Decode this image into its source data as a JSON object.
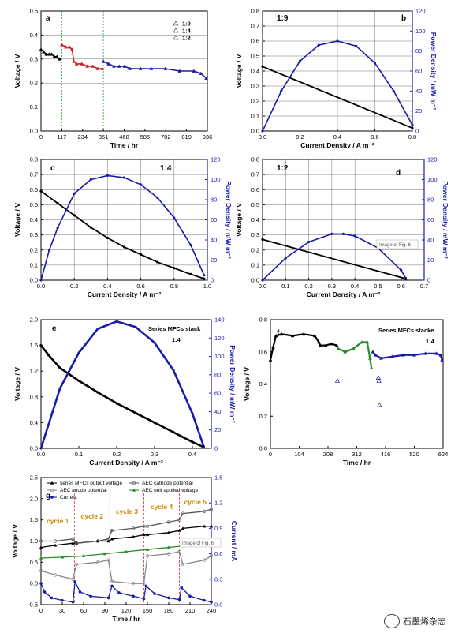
{
  "chart_data": [
    {
      "id": "a",
      "type": "line",
      "panel_label": "a",
      "xlabel": "Time / hr",
      "ylabel": "Voltage / V",
      "xlim": [
        0,
        936
      ],
      "ylim": [
        0,
        0.5
      ],
      "xticks": [
        0,
        117,
        234,
        351,
        468,
        585,
        702,
        819,
        936
      ],
      "yticks": [
        0,
        0.1,
        0.2,
        0.3,
        0.4,
        0.5
      ],
      "legend": [
        "1:9",
        "1:4",
        "1:2"
      ],
      "legend_position": "top-right",
      "vlines": [
        117,
        351
      ],
      "series": [
        {
          "name": "1:9",
          "color": "#000000",
          "x": [
            0,
            15,
            30,
            45,
            60,
            75,
            90,
            105
          ],
          "y": [
            0.34,
            0.33,
            0.32,
            0.32,
            0.32,
            0.31,
            0.31,
            0.3
          ]
        },
        {
          "name": "1:4",
          "color": "#cc2222",
          "x": [
            117,
            140,
            160,
            175,
            185,
            200,
            230,
            260,
            290,
            320,
            345
          ],
          "y": [
            0.36,
            0.35,
            0.35,
            0.34,
            0.29,
            0.28,
            0.28,
            0.27,
            0.27,
            0.26,
            0.26
          ]
        },
        {
          "name": "1:2",
          "color": "#1a1aa8",
          "x": [
            351,
            380,
            410,
            440,
            470,
            500,
            560,
            620,
            700,
            780,
            860,
            900,
            930
          ],
          "y": [
            0.29,
            0.28,
            0.27,
            0.27,
            0.27,
            0.26,
            0.26,
            0.26,
            0.26,
            0.25,
            0.25,
            0.24,
            0.22
          ]
        }
      ]
    },
    {
      "id": "b",
      "type": "line",
      "panel_label": "b",
      "annotation": "1:9",
      "xlabel": "Current Density / A m⁻²",
      "ylabel": "Voltage / V",
      "y2label": "Power Density / mW m⁻²",
      "xlim": [
        0,
        0.8
      ],
      "ylim": [
        0,
        0.8
      ],
      "y2lim": [
        0,
        120
      ],
      "xticks": [
        0.0,
        0.2,
        0.4,
        0.6,
        0.8
      ],
      "yticks": [
        0.0,
        0.1,
        0.2,
        0.3,
        0.4,
        0.5,
        0.6,
        0.7,
        0.8
      ],
      "y2ticks": [
        0,
        20,
        40,
        60,
        80,
        100,
        120
      ],
      "voltage": {
        "x": [
          0.0,
          0.8
        ],
        "y": [
          0.43,
          0.02
        ]
      },
      "power": {
        "x": [
          0.0,
          0.1,
          0.2,
          0.3,
          0.4,
          0.5,
          0.6,
          0.7,
          0.8
        ],
        "y": [
          0,
          40,
          70,
          86,
          90,
          85,
          68,
          40,
          6
        ]
      }
    },
    {
      "id": "c",
      "type": "line",
      "panel_label": "c",
      "annotation": "1:4",
      "xlabel": "Current Density / A m⁻²",
      "ylabel": "Voltage / V",
      "y2label": "Power Density / mW m⁻²",
      "xlim": [
        0,
        1.0
      ],
      "ylim": [
        0,
        0.8
      ],
      "y2lim": [
        0,
        120
      ],
      "xticks": [
        0.0,
        0.2,
        0.4,
        0.6,
        0.8,
        1.0
      ],
      "yticks": [
        0.0,
        0.1,
        0.2,
        0.3,
        0.4,
        0.5,
        0.6,
        0.7,
        0.8
      ],
      "y2ticks": [
        0,
        20,
        40,
        60,
        80,
        100,
        120
      ],
      "voltage": {
        "x": [
          0.0,
          0.1,
          0.2,
          0.3,
          0.4,
          0.5,
          0.6,
          0.7,
          0.8,
          0.9,
          0.98
        ],
        "y": [
          0.59,
          0.51,
          0.43,
          0.35,
          0.28,
          0.22,
          0.17,
          0.12,
          0.08,
          0.04,
          0.01
        ]
      },
      "power": {
        "x": [
          0.0,
          0.05,
          0.1,
          0.2,
          0.3,
          0.4,
          0.5,
          0.6,
          0.7,
          0.8,
          0.9,
          0.98
        ],
        "y": [
          0,
          30,
          52,
          86,
          100,
          104,
          102,
          95,
          82,
          62,
          35,
          5
        ]
      }
    },
    {
      "id": "d",
      "type": "line",
      "panel_label": "d",
      "annotation": "1:2",
      "xlabel": "Current Density / A m⁻²",
      "ylabel": "Voltage / V",
      "y2label": "Power Density / mW m⁻²",
      "xlim": [
        0,
        0.7
      ],
      "ylim": [
        0,
        0.8
      ],
      "y2lim": [
        0,
        120
      ],
      "xticks": [
        0.0,
        0.1,
        0.2,
        0.3,
        0.4,
        0.5,
        0.6,
        0.7
      ],
      "yticks": [
        0.0,
        0.1,
        0.2,
        0.3,
        0.4,
        0.5,
        0.6,
        0.7,
        0.8
      ],
      "y2ticks": [
        0,
        20,
        40,
        60,
        80,
        100,
        120
      ],
      "voltage": {
        "x": [
          0.0,
          0.62
        ],
        "y": [
          0.27,
          0.01
        ]
      },
      "power": {
        "x": [
          0.0,
          0.1,
          0.2,
          0.3,
          0.35,
          0.4,
          0.5,
          0.6,
          0.62
        ],
        "y": [
          0,
          22,
          38,
          46,
          46,
          44,
          32,
          10,
          2
        ]
      }
    },
    {
      "id": "e",
      "type": "line",
      "panel_label": "e",
      "annotation": "Series MFCs stack",
      "annotation2": "1:4",
      "xlabel": "Current Density / A m⁻²",
      "ylabel": "Voltage / V",
      "y2label": "Power Density / mW m⁻²",
      "xlim": [
        0,
        0.45
      ],
      "ylim": [
        0,
        2.0
      ],
      "y2lim": [
        0,
        140
      ],
      "xticks": [
        0.0,
        0.1,
        0.2,
        0.3,
        0.4
      ],
      "yticks": [
        0.0,
        0.4,
        0.8,
        1.2,
        1.6,
        2.0
      ],
      "y2ticks": [
        0,
        20,
        40,
        60,
        80,
        100,
        120,
        140
      ],
      "voltage": {
        "x": [
          0.0,
          0.02,
          0.05,
          0.1,
          0.15,
          0.2,
          0.25,
          0.3,
          0.35,
          0.4,
          0.43
        ],
        "y": [
          1.6,
          1.45,
          1.25,
          1.05,
          0.87,
          0.7,
          0.55,
          0.4,
          0.25,
          0.1,
          0.02
        ]
      },
      "power": {
        "x": [
          0.0,
          0.05,
          0.1,
          0.15,
          0.2,
          0.25,
          0.3,
          0.35,
          0.4,
          0.43
        ],
        "y": [
          0,
          65,
          104,
          130,
          138,
          132,
          115,
          85,
          38,
          2
        ]
      }
    },
    {
      "id": "f",
      "type": "line",
      "panel_label": "f",
      "annotation": "Series MFCs stacke",
      "annotation2": "1:4",
      "xlabel": "Time / hr",
      "ylabel": "Voltage / V",
      "xlim": [
        0,
        624
      ],
      "ylim": [
        0,
        0.8
      ],
      "xticks": [
        0,
        104,
        208,
        312,
        416,
        520,
        624
      ],
      "yticks": [
        0.0,
        0.2,
        0.4,
        0.6,
        0.8
      ],
      "series": [
        {
          "name": "segment-1",
          "color": "#000000",
          "x": [
            0,
            10,
            20,
            40,
            80,
            120,
            160,
            175,
            180,
            200,
            220,
            240
          ],
          "y": [
            0.55,
            0.63,
            0.7,
            0.71,
            0.7,
            0.71,
            0.7,
            0.66,
            0.64,
            0.64,
            0.65,
            0.64
          ]
        },
        {
          "name": "segment-2",
          "color": "#2a8a2a",
          "x": [
            245,
            270,
            300,
            330,
            350,
            360,
            365
          ],
          "y": [
            0.62,
            0.6,
            0.62,
            0.66,
            0.66,
            0.56,
            0.5
          ]
        },
        {
          "name": "segment-3",
          "color": "#1a1aa8",
          "x": [
            370,
            380,
            400,
            440,
            480,
            520,
            560,
            600,
            615,
            620
          ],
          "y": [
            0.6,
            0.58,
            0.56,
            0.57,
            0.58,
            0.58,
            0.59,
            0.59,
            0.58,
            0.55
          ]
        }
      ],
      "outliers": [
        {
          "x": [
            242,
            390,
            392,
            394
          ],
          "y": [
            0.42,
            0.44,
            0.42,
            0.27
          ]
        }
      ]
    },
    {
      "id": "g",
      "type": "line",
      "panel_label": "g",
      "xlabel": "Time / hr",
      "ylabel": "Voltage / V",
      "y2label": "Current / mA",
      "xlim": [
        0,
        240
      ],
      "ylim": [
        -0.5,
        2.5
      ],
      "y2lim": [
        0,
        1.5
      ],
      "xticks": [
        0,
        30,
        60,
        90,
        120,
        150,
        180,
        210,
        240
      ],
      "yticks": [
        -0.5,
        0.0,
        0.5,
        1.0,
        1.5,
        2.0,
        2.5
      ],
      "y2ticks": [
        0.0,
        0.3,
        0.6,
        0.9,
        1.2,
        1.5
      ],
      "cycles": [
        "cycle 1",
        "cycle 2",
        "cycle 3",
        "cycle 4",
        "cycle 5"
      ],
      "cycle_bounds": [
        47,
        97,
        145,
        195
      ],
      "series": [
        {
          "name": "series MFCs output voltage",
          "color": "#000000",
          "axis": "left",
          "x": [
            0,
            20,
            45,
            50,
            80,
            95,
            100,
            130,
            145,
            150,
            180,
            195,
            200,
            230,
            240
          ],
          "y": [
            0.85,
            0.9,
            0.95,
            0.95,
            1.0,
            1.0,
            1.05,
            1.1,
            1.15,
            1.15,
            1.2,
            1.25,
            1.3,
            1.35,
            1.35
          ]
        },
        {
          "name": "AEC cathode potential",
          "color": "#555555",
          "axis": "left",
          "x": [
            0,
            20,
            45,
            50,
            80,
            95,
            100,
            130,
            145,
            150,
            180,
            195,
            200,
            230,
            240
          ],
          "y": [
            1.0,
            1.0,
            1.05,
            0.95,
            1.0,
            1.05,
            1.25,
            1.3,
            1.35,
            1.35,
            1.45,
            1.5,
            1.65,
            1.7,
            1.75
          ]
        },
        {
          "name": "AEC anode potential",
          "color": "#888888",
          "axis": "left",
          "x": [
            0,
            20,
            45,
            50,
            80,
            95,
            100,
            130,
            145,
            150,
            180,
            195,
            200,
            230,
            240
          ],
          "y": [
            0.3,
            0.2,
            0.1,
            0.45,
            0.5,
            0.55,
            0.05,
            0.0,
            0.0,
            0.65,
            0.7,
            0.75,
            0.45,
            0.55,
            0.65
          ]
        },
        {
          "name": "AEC unit applied voltage",
          "color": "#2a8a2a",
          "axis": "left",
          "x": [
            0,
            30,
            60,
            90,
            120,
            150,
            180,
            210,
            240
          ],
          "y": [
            0.6,
            0.62,
            0.65,
            0.7,
            0.75,
            0.8,
            0.85,
            0.9,
            0.95
          ]
        },
        {
          "name": "Current",
          "color": "#1a1aa8",
          "axis": "right",
          "x": [
            0,
            5,
            15,
            30,
            45,
            48,
            55,
            70,
            95,
            100,
            110,
            130,
            145,
            148,
            160,
            180,
            195,
            198,
            210,
            230,
            240
          ],
          "y": [
            0.25,
            0.15,
            0.08,
            0.05,
            0.03,
            0.27,
            0.15,
            0.1,
            0.08,
            0.22,
            0.14,
            0.1,
            0.07,
            0.22,
            0.13,
            0.08,
            0.06,
            0.2,
            0.1,
            0.05,
            0.03
          ]
        }
      ]
    }
  ],
  "overlays": {
    "image_caption": "Image of Fig. 6"
  },
  "watermark": {
    "text": "石墨烯杂志"
  }
}
